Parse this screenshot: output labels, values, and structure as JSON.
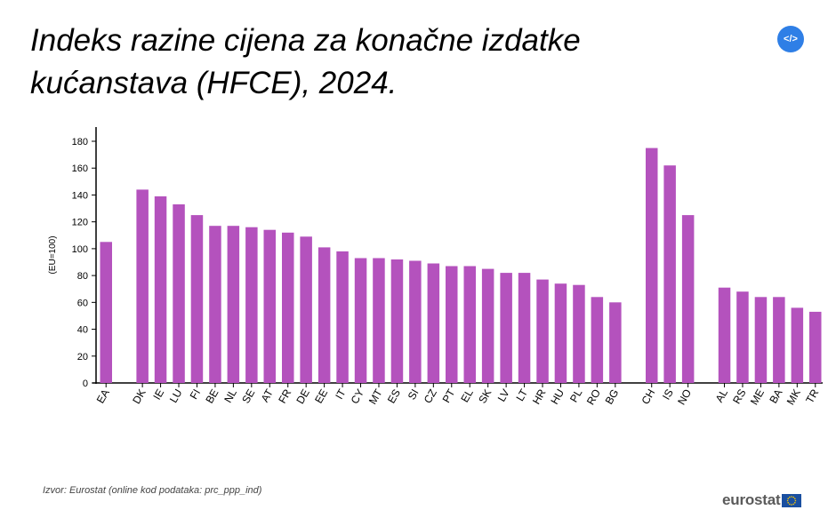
{
  "title": "Indeks razine cijena za konačne izdatke kućanstava (HFCE), 2024.",
  "embed_button": {
    "label": "</>",
    "icon": "code-icon"
  },
  "source": "Izvor: Eurostat (online kod podataka: prc_ppp_ind)",
  "logo": {
    "text": "eurostat",
    "icon": "eu-flag-icon"
  },
  "colors": {
    "bar": "#b452bd",
    "button": "#2f7fe6",
    "flag": "#1a4fa0",
    "stars": "#ffcc00"
  },
  "chart_data": {
    "type": "bar",
    "title": "Indeks razine cijena za konačne izdatke kućanstava (HFCE), 2024.",
    "ylabel": "(EU=100)",
    "xlabel": "",
    "ylim": [
      0,
      190
    ],
    "yticks": [
      0,
      20,
      40,
      60,
      80,
      100,
      120,
      140,
      160,
      180
    ],
    "grid": false,
    "groups": [
      {
        "categories": [
          "EA"
        ],
        "values": [
          105
        ]
      },
      {
        "categories": [
          "DK",
          "IE",
          "LU",
          "FI",
          "BE",
          "NL",
          "SE",
          "AT",
          "FR",
          "DE",
          "EE",
          "IT",
          "CY",
          "MT",
          "ES",
          "SI",
          "CZ",
          "PT",
          "EL",
          "SK",
          "LV",
          "LT",
          "HR",
          "HU",
          "PL",
          "RO",
          "BG"
        ],
        "values": [
          144,
          139,
          133,
          125,
          117,
          117,
          116,
          114,
          112,
          109,
          101,
          98,
          93,
          93,
          92,
          91,
          89,
          87,
          87,
          85,
          82,
          82,
          77,
          74,
          73,
          64,
          60
        ]
      },
      {
        "categories": [
          "CH",
          "IS",
          "NO"
        ],
        "values": [
          175,
          162,
          125
        ]
      },
      {
        "categories": [
          "AL",
          "RS",
          "ME",
          "BA",
          "MK",
          "TR"
        ],
        "values": [
          71,
          68,
          64,
          64,
          56,
          53
        ]
      }
    ]
  }
}
